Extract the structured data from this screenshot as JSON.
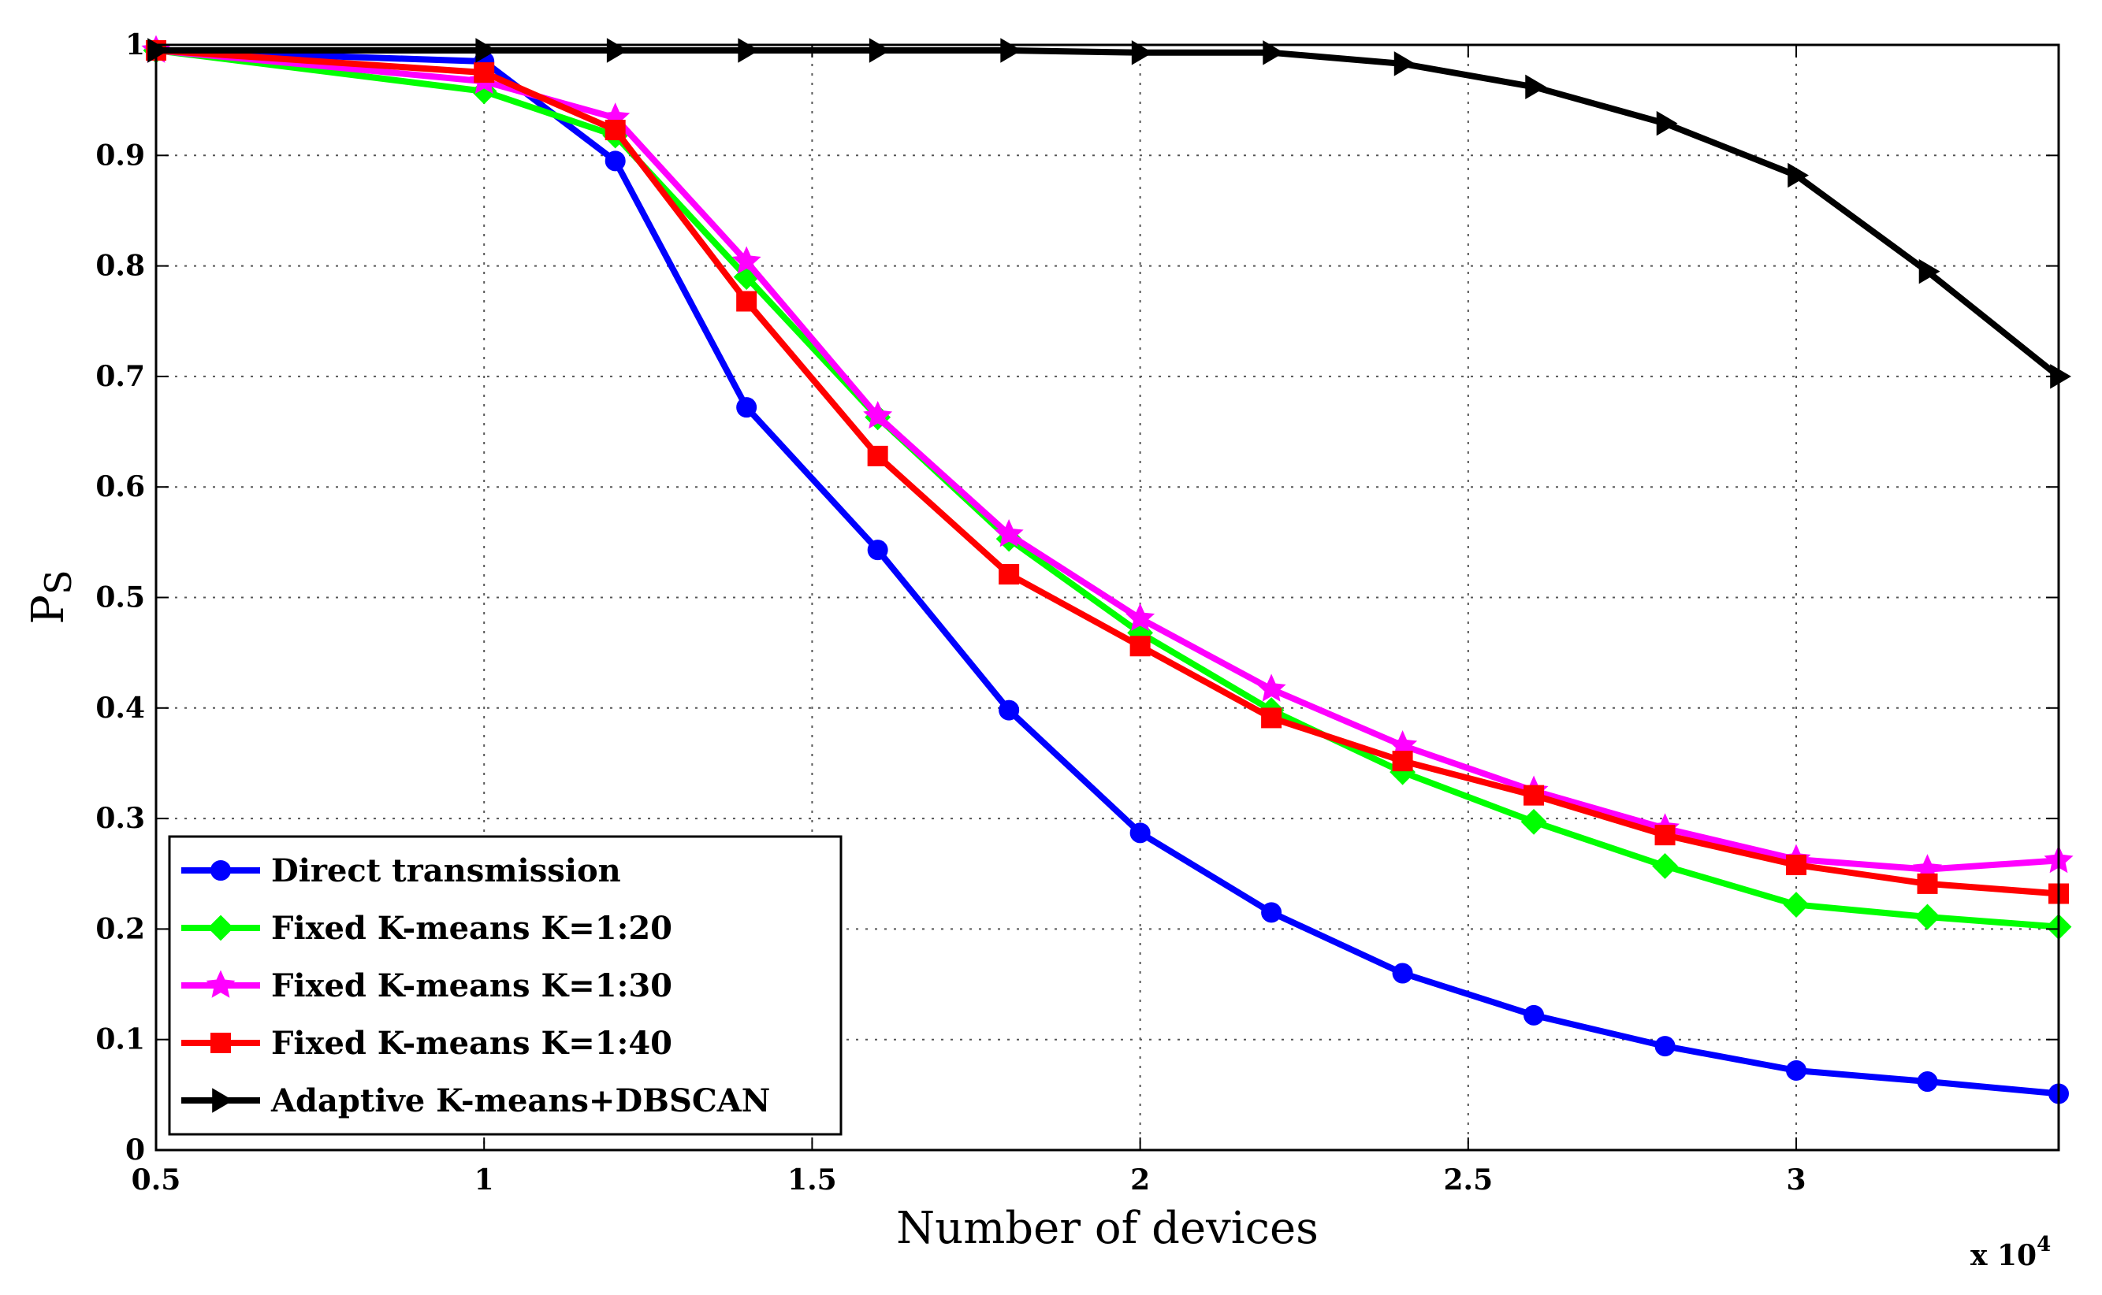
{
  "chart_data": {
    "type": "line",
    "title": "",
    "xlabel": "Number of devices",
    "ylabel": "Ps",
    "ylabel_main": "P",
    "ylabel_sub": "S",
    "x_multiplier_base": "x 10",
    "x_multiplier_exp": "4",
    "xlim": [
      0.5,
      3.4
    ],
    "ylim": [
      0,
      1
    ],
    "grid": true,
    "legend_position": "bottom-left",
    "xticks": [
      0.5,
      1,
      1.5,
      2,
      2.5,
      3
    ],
    "xtick_labels": [
      "0.5",
      "1",
      "1.5",
      "2",
      "2.5",
      "3"
    ],
    "yticks": [
      0,
      0.1,
      0.2,
      0.3,
      0.4,
      0.5,
      0.6,
      0.7,
      0.8,
      0.9,
      1
    ],
    "ytick_labels": [
      "0",
      "0.1",
      "0.2",
      "0.3",
      "0.4",
      "0.5",
      "0.6",
      "0.7",
      "0.8",
      "0.9",
      "1"
    ],
    "x": [
      0.5,
      1.0,
      1.2,
      1.4,
      1.6,
      1.8,
      2.0,
      2.2,
      2.4,
      2.6,
      2.8,
      3.0,
      3.2,
      3.4
    ],
    "series": [
      {
        "name": "Direct transmission",
        "color": "#0000ff",
        "marker": "circle",
        "values": [
          0.995,
          0.985,
          0.895,
          0.672,
          0.543,
          0.398,
          0.287,
          0.215,
          0.16,
          0.122,
          0.094,
          0.072,
          0.062,
          0.051
        ]
      },
      {
        "name": "Fixed K-means K=1:20",
        "color": "#00ff00",
        "marker": "diamond",
        "values": [
          0.995,
          0.958,
          0.918,
          0.79,
          0.663,
          0.553,
          0.468,
          0.398,
          0.342,
          0.297,
          0.257,
          0.222,
          0.211,
          0.202
        ]
      },
      {
        "name": "Fixed K-means K=1:30",
        "color": "#ff00ff",
        "marker": "star",
        "values": [
          0.995,
          0.967,
          0.934,
          0.804,
          0.664,
          0.557,
          0.481,
          0.417,
          0.366,
          0.325,
          0.291,
          0.263,
          0.254,
          0.262
        ]
      },
      {
        "name": "Fixed K-means K=1:40",
        "color": "#ff0000",
        "marker": "square",
        "values": [
          0.995,
          0.975,
          0.923,
          0.768,
          0.628,
          0.521,
          0.456,
          0.391,
          0.352,
          0.321,
          0.285,
          0.258,
          0.241,
          0.232
        ]
      },
      {
        "name": "Adaptive K-means+DBSCAN",
        "color": "#000000",
        "marker": "triangle-right",
        "values": [
          0.995,
          0.995,
          0.995,
          0.995,
          0.995,
          0.995,
          0.993,
          0.993,
          0.983,
          0.962,
          0.929,
          0.882,
          0.795,
          0.7
        ]
      }
    ]
  }
}
